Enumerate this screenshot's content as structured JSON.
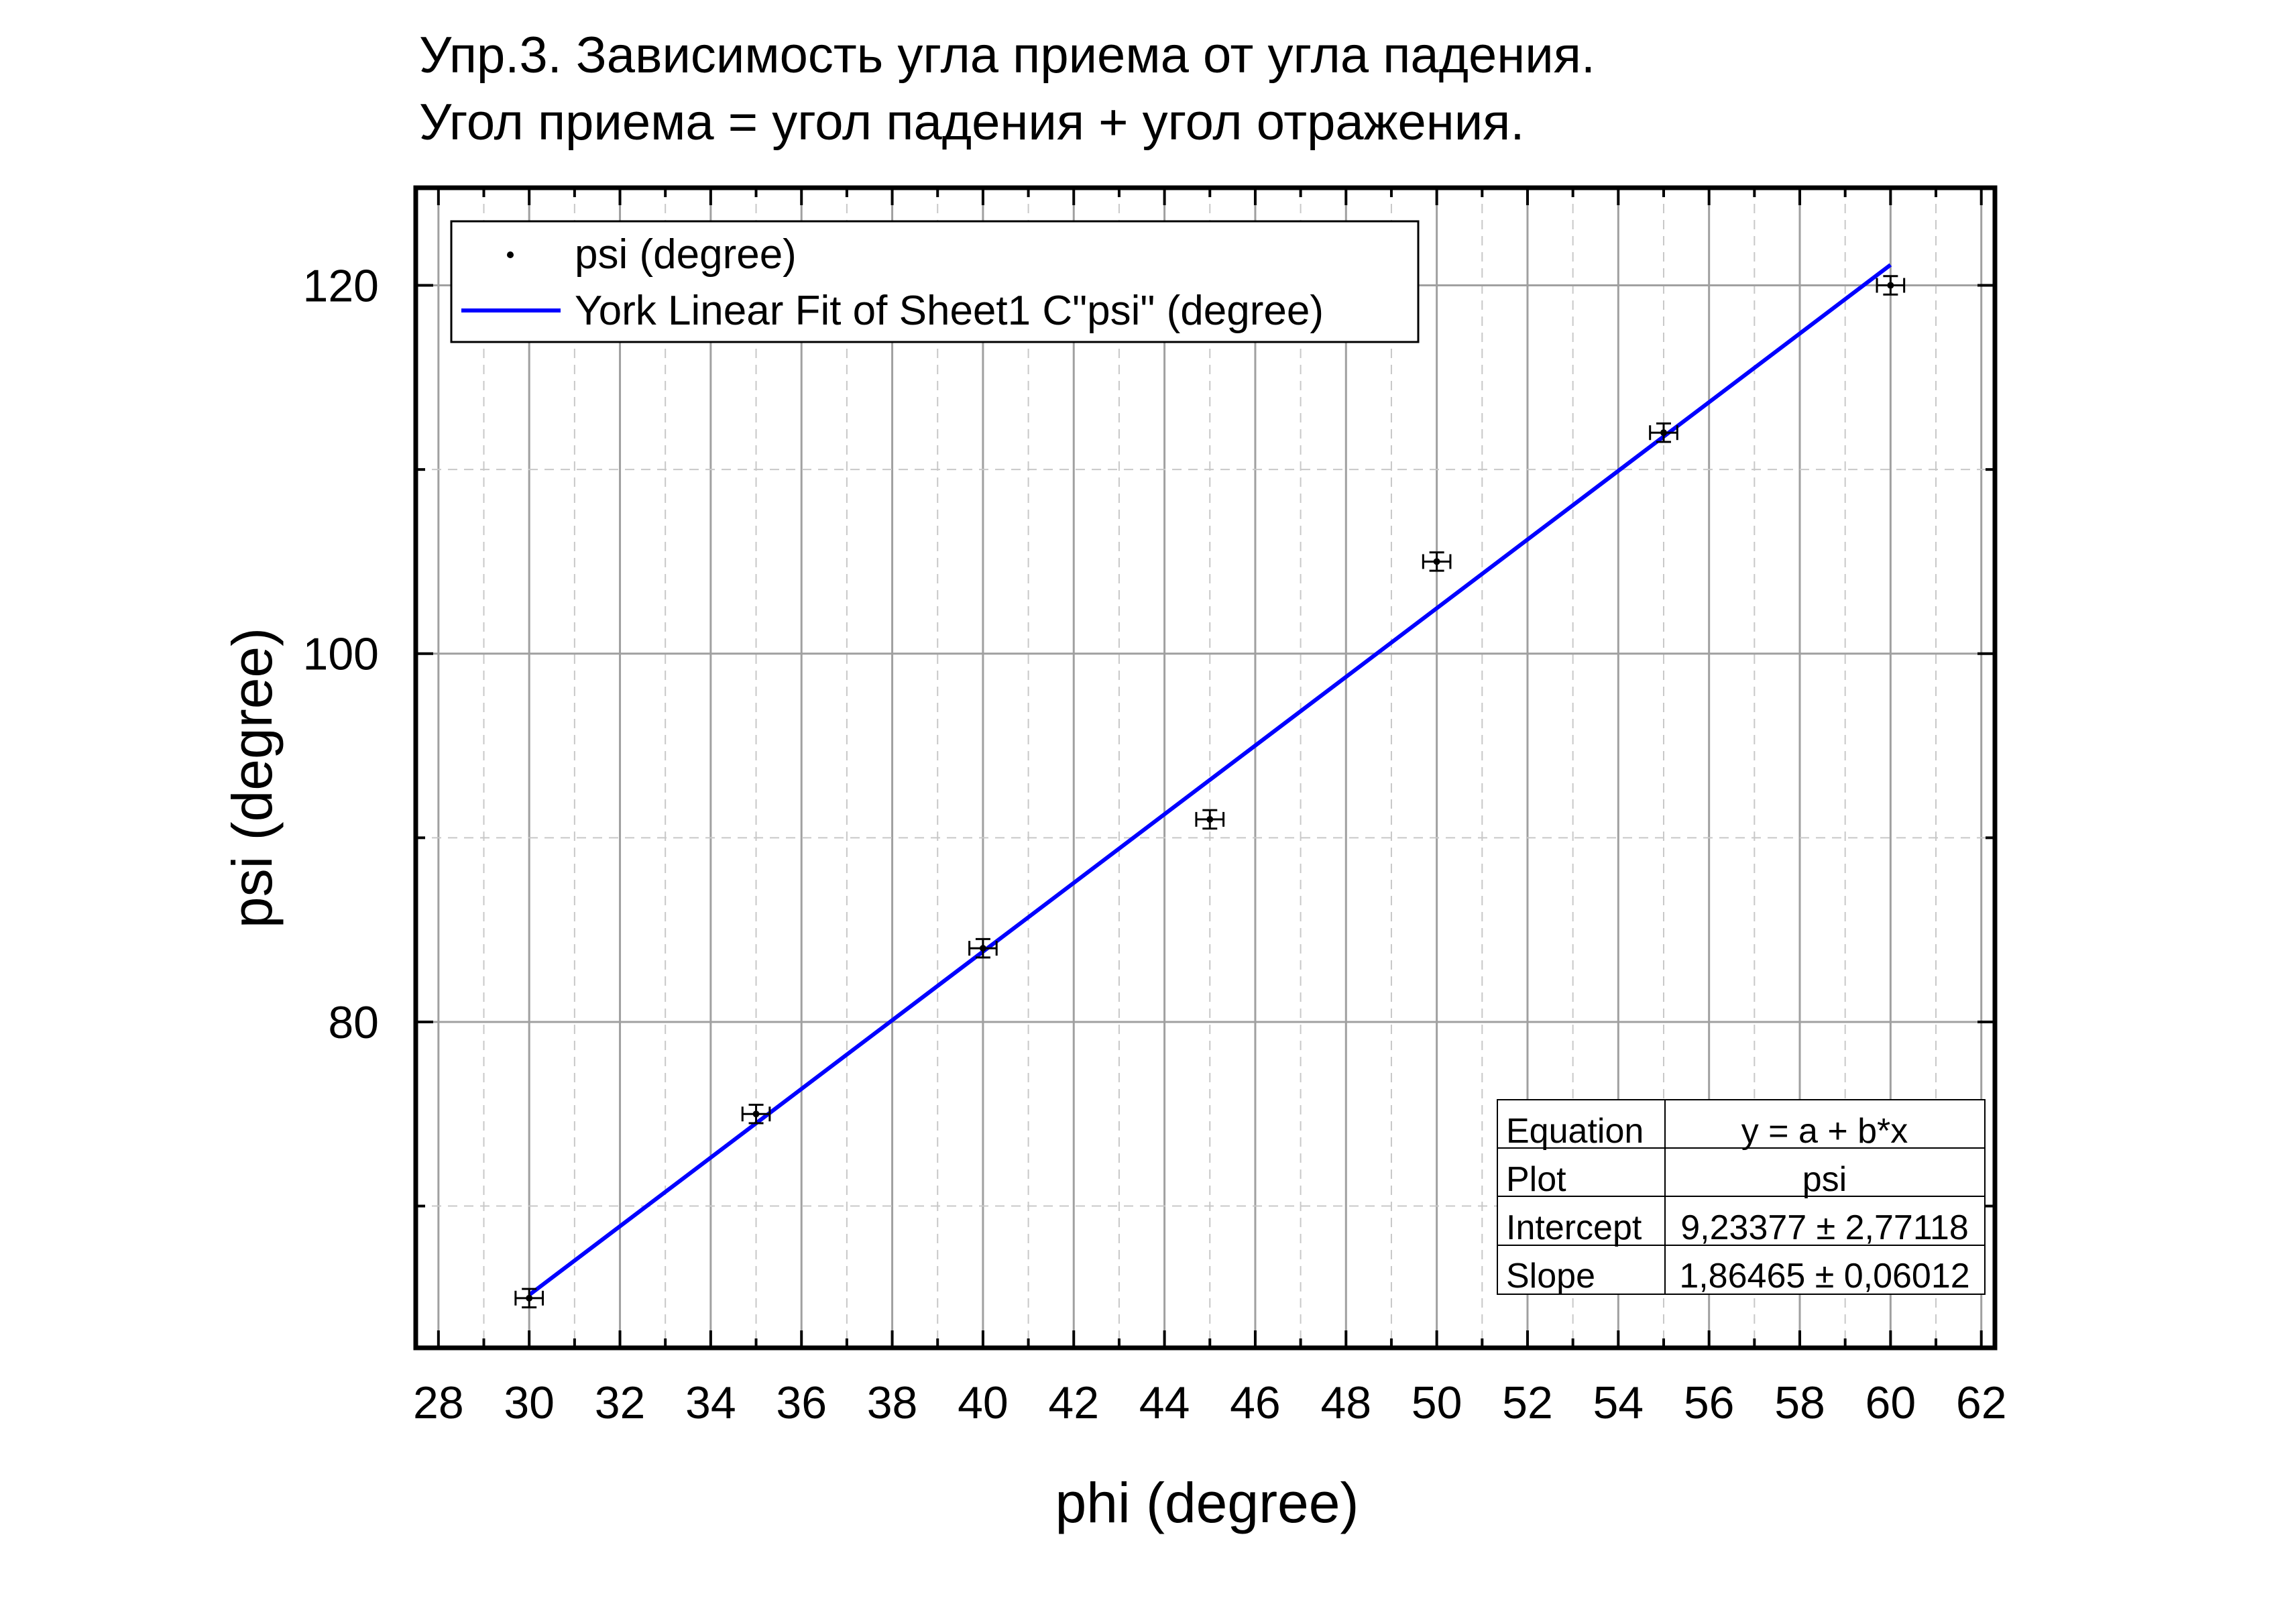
{
  "chart_data": {
    "type": "scatter",
    "title": "Упр.3. Зависимость угла приема от угла падения.",
    "subtitle": "Угол приема = угол падения + угол отражения.",
    "xlabel": "phi (degree)",
    "ylabel": "psi (degree)",
    "xlim": [
      27.5,
      62.3
    ],
    "ylim": [
      62.3,
      125.3
    ],
    "xticks": [
      "28",
      "30",
      "32",
      "34",
      "36",
      "38",
      "40",
      "42",
      "44",
      "46",
      "48",
      "50",
      "52",
      "54",
      "56",
      "58",
      "60",
      "62"
    ],
    "yticks": [
      "80",
      "100",
      "120"
    ],
    "grid": true,
    "legend_position": "top-left",
    "series": [
      {
        "name": "psi (degree)",
        "kind": "points-with-xy-error-bars",
        "color": "#000000",
        "x": [
          30,
          35,
          40,
          45,
          50,
          55,
          60
        ],
        "y": [
          65,
          75,
          84,
          91,
          105,
          112,
          120
        ],
        "x_error": 0.3,
        "y_error": 0.5
      },
      {
        "name": "York Linear Fit of Sheet1 C\"psi\" (degree)",
        "kind": "line",
        "color": "#0000ff",
        "x": [
          30,
          60
        ],
        "y": [
          65.17327,
          121.11277
        ]
      }
    ],
    "fit_table": {
      "rows": [
        {
          "label": "Equation",
          "value": "y = a + b*x"
        },
        {
          "label": "Plot",
          "value": "psi"
        },
        {
          "label": "Intercept",
          "value": "9,23377 ± 2,77118"
        },
        {
          "label": "Slope",
          "value": "1,86465 ± 0,06012"
        }
      ]
    }
  }
}
